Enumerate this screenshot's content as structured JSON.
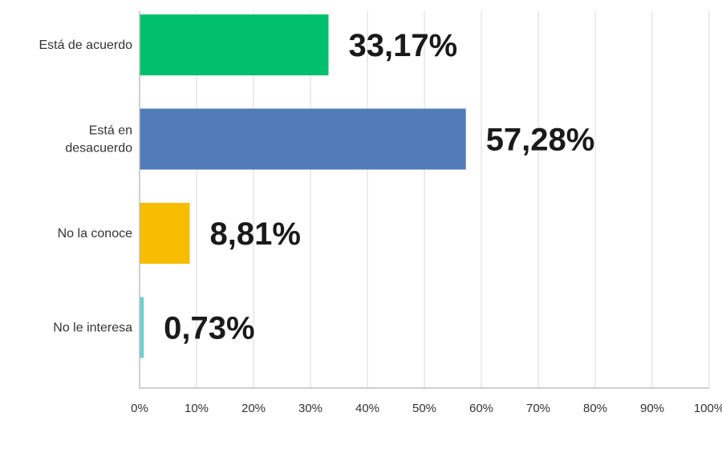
{
  "chart_data": {
    "type": "bar",
    "orientation": "horizontal",
    "categories": [
      [
        "Está de acuerdo"
      ],
      [
        "Está en",
        "desacuerdo"
      ],
      [
        "No la conoce"
      ],
      [
        "No le interesa"
      ]
    ],
    "values": [
      33.17,
      57.28,
      8.81,
      0.73
    ],
    "value_labels": [
      "33,17%",
      "57,28%",
      "8,81%",
      "0,73%"
    ],
    "colors": [
      "#00c06e",
      "#517cb8",
      "#f8bd00",
      "#6cd0d0"
    ],
    "xlim": [
      0,
      100
    ],
    "x_ticks": [
      0,
      10,
      20,
      30,
      40,
      50,
      60,
      70,
      80,
      90,
      100
    ],
    "x_tick_labels": [
      "0%",
      "10%",
      "20%",
      "30%",
      "40%",
      "50%",
      "60%",
      "70%",
      "80%",
      "90%",
      "100%"
    ],
    "grid": true,
    "legend": false
  }
}
